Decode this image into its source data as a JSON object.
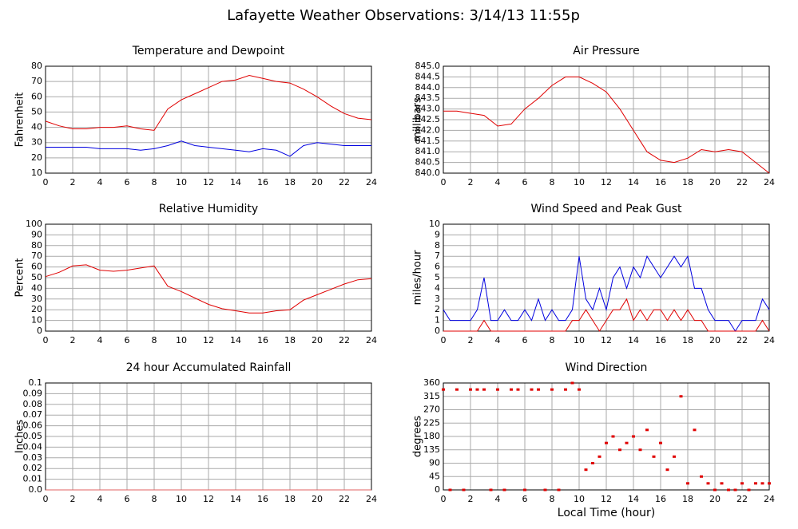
{
  "title": "Lafayette Weather Observations: 3/14/13 11:55p",
  "chart_data": [
    {
      "type": "line",
      "title": "Temperature and Dewpoint",
      "ylabel": "Fahrenheit",
      "x": [
        0,
        1,
        2,
        3,
        4,
        5,
        6,
        7,
        8,
        9,
        10,
        11,
        12,
        13,
        14,
        15,
        16,
        17,
        18,
        19,
        20,
        21,
        22,
        23,
        24
      ],
      "series": [
        {
          "color": "#e00000",
          "values": [
            44,
            41,
            39,
            39,
            40,
            40,
            41,
            39,
            38,
            52,
            58,
            62,
            66,
            70,
            71,
            74,
            72,
            70,
            69,
            65,
            60,
            54,
            49,
            46,
            45
          ]
        },
        {
          "color": "#0000e0",
          "values": [
            27,
            27,
            27,
            27,
            26,
            26,
            26,
            25,
            26,
            28,
            31,
            28,
            27,
            26,
            25,
            24,
            26,
            25,
            21,
            28,
            30,
            29,
            28,
            28,
            28
          ]
        }
      ],
      "xlim": [
        0,
        24
      ],
      "xticks": [
        0,
        2,
        4,
        6,
        8,
        10,
        12,
        14,
        16,
        18,
        20,
        22,
        24
      ],
      "ylim": [
        10,
        80
      ],
      "yticks": [
        10,
        20,
        30,
        40,
        50,
        60,
        70,
        80
      ],
      "grid": true
    },
    {
      "type": "line",
      "title": "Air Pressure",
      "ylabel": "millibars",
      "x": [
        0,
        1,
        2,
        3,
        4,
        5,
        6,
        7,
        8,
        9,
        10,
        11,
        12,
        13,
        14,
        15,
        16,
        17,
        18,
        19,
        20,
        21,
        22,
        23,
        24
      ],
      "series": [
        {
          "color": "#e00000",
          "values": [
            842.9,
            842.9,
            842.8,
            842.7,
            842.2,
            842.3,
            843.0,
            843.5,
            844.1,
            844.5,
            844.5,
            844.2,
            843.8,
            843.0,
            842.0,
            841.0,
            840.6,
            840.5,
            840.7,
            841.1,
            841.0,
            841.1,
            841.0,
            840.5,
            840.0
          ]
        }
      ],
      "xlim": [
        0,
        24
      ],
      "xticks": [
        0,
        2,
        4,
        6,
        8,
        10,
        12,
        14,
        16,
        18,
        20,
        22,
        24
      ],
      "ylim": [
        840,
        845
      ],
      "yticks": [
        {
          "value": 840,
          "label": "840.0"
        },
        840.5,
        {
          "value": 841,
          "label": "841.0"
        },
        841.5,
        {
          "value": 842,
          "label": "842.0"
        },
        842.5,
        {
          "value": 843,
          "label": "843.0"
        },
        843.5,
        {
          "value": 844,
          "label": "844.0"
        },
        844.5,
        {
          "value": 845,
          "label": "845.0"
        }
      ],
      "grid": true
    },
    {
      "type": "line",
      "title": "Relative Humidity",
      "ylabel": "Percent",
      "x": [
        0,
        1,
        2,
        3,
        4,
        5,
        6,
        7,
        8,
        9,
        10,
        11,
        12,
        13,
        14,
        15,
        16,
        17,
        18,
        19,
        20,
        21,
        22,
        23,
        24
      ],
      "series": [
        {
          "color": "#e00000",
          "values": [
            51,
            55,
            61,
            62,
            57,
            56,
            57,
            59,
            61,
            42,
            37,
            31,
            25,
            21,
            19,
            17,
            17,
            19,
            20,
            29,
            34,
            39,
            44,
            48,
            49
          ]
        }
      ],
      "xlim": [
        0,
        24
      ],
      "xticks": [
        0,
        2,
        4,
        6,
        8,
        10,
        12,
        14,
        16,
        18,
        20,
        22,
        24
      ],
      "ylim": [
        0,
        100
      ],
      "yticks": [
        0,
        10,
        20,
        30,
        40,
        50,
        60,
        70,
        80,
        90,
        100
      ],
      "grid": true
    },
    {
      "type": "line",
      "title": "Wind Speed and Peak Gust",
      "ylabel": "miles/hour",
      "x": [
        0,
        0.5,
        1,
        1.5,
        2,
        2.5,
        3,
        3.5,
        4,
        4.5,
        5,
        5.5,
        6,
        6.5,
        7,
        7.5,
        8,
        8.5,
        9,
        9.5,
        10,
        10.5,
        11,
        11.5,
        12,
        12.5,
        13,
        13.5,
        14,
        14.5,
        15,
        15.5,
        16,
        16.5,
        17,
        17.5,
        18,
        18.5,
        19,
        19.5,
        20,
        20.5,
        21,
        21.5,
        22,
        22.5,
        23,
        23.5,
        24
      ],
      "series": [
        {
          "color": "#0000e0",
          "values": [
            2,
            1,
            1,
            1,
            1,
            2,
            5,
            1,
            1,
            2,
            1,
            1,
            2,
            1,
            3,
            1,
            2,
            1,
            1,
            2,
            7,
            3,
            2,
            4,
            2,
            5,
            6,
            4,
            6,
            5,
            7,
            6,
            5,
            6,
            7,
            6,
            7,
            4,
            4,
            2,
            1,
            1,
            1,
            0,
            1,
            1,
            1,
            3,
            2
          ]
        },
        {
          "color": "#e00000",
          "values": [
            0,
            0,
            0,
            0,
            0,
            0,
            1,
            0,
            0,
            0,
            0,
            0,
            0,
            0,
            0,
            0,
            0,
            0,
            0,
            1,
            1,
            2,
            1,
            0,
            1,
            2,
            2,
            3,
            1,
            2,
            1,
            2,
            2,
            1,
            2,
            1,
            2,
            1,
            1,
            0,
            0,
            0,
            0,
            0,
            0,
            0,
            0,
            1,
            0
          ]
        }
      ],
      "xlim": [
        0,
        24
      ],
      "xticks": [
        0,
        2,
        4,
        6,
        8,
        10,
        12,
        14,
        16,
        18,
        20,
        22,
        24
      ],
      "ylim": [
        0,
        10
      ],
      "yticks": [
        0,
        1,
        2,
        3,
        4,
        5,
        6,
        7,
        8,
        9,
        10
      ],
      "grid": true
    },
    {
      "type": "line",
      "title": "24 hour Accumulated Rainfall",
      "ylabel": "Inches",
      "x": [
        0,
        24
      ],
      "series": [
        {
          "color": "#e06060",
          "values": [
            0,
            0
          ]
        }
      ],
      "xlim": [
        0,
        24
      ],
      "xticks": [
        0,
        2,
        4,
        6,
        8,
        10,
        12,
        14,
        16,
        18,
        20,
        22,
        24
      ],
      "ylim": [
        0,
        0.1
      ],
      "yticks": [
        {
          "value": 0,
          "label": "0.0"
        },
        0.01,
        0.02,
        0.03,
        0.04,
        0.05,
        0.06,
        0.07,
        0.08,
        0.09,
        0.1
      ],
      "grid": true
    },
    {
      "type": "scatter",
      "title": "Wind Direction",
      "ylabel": "degrees",
      "xlabel": "Local Time (hour)",
      "x": [
        0,
        0.5,
        1,
        1.5,
        2,
        2.5,
        3,
        3.5,
        4,
        4.5,
        5,
        5.5,
        6,
        6.5,
        7,
        7.5,
        8,
        8.5,
        9,
        9.5,
        10,
        10.5,
        11,
        11.5,
        12,
        12.5,
        13,
        13.5,
        14,
        14.5,
        15,
        15.5,
        16,
        16.5,
        17,
        17.5,
        18,
        18.5,
        19,
        19.5,
        20,
        20.5,
        21,
        21.5,
        22,
        22.5,
        23,
        23.5,
        24
      ],
      "series": [
        {
          "color": "#e00000",
          "values": [
            338,
            0,
            338,
            0,
            338,
            338,
            338,
            0,
            338,
            0,
            338,
            338,
            0,
            338,
            338,
            0,
            338,
            0,
            338,
            360,
            338,
            68,
            90,
            112,
            158,
            180,
            135,
            158,
            180,
            135,
            202,
            112,
            158,
            68,
            112,
            315,
            22,
            202,
            45,
            22,
            0,
            22,
            0,
            0,
            22,
            0,
            22,
            22,
            22
          ]
        }
      ],
      "xlim": [
        0,
        24
      ],
      "xticks": [
        0,
        2,
        4,
        6,
        8,
        10,
        12,
        14,
        16,
        18,
        20,
        22,
        24
      ],
      "ylim": [
        0,
        360
      ],
      "yticks": [
        0,
        45,
        90,
        135,
        180,
        225,
        270,
        315,
        360
      ],
      "grid": true
    }
  ]
}
